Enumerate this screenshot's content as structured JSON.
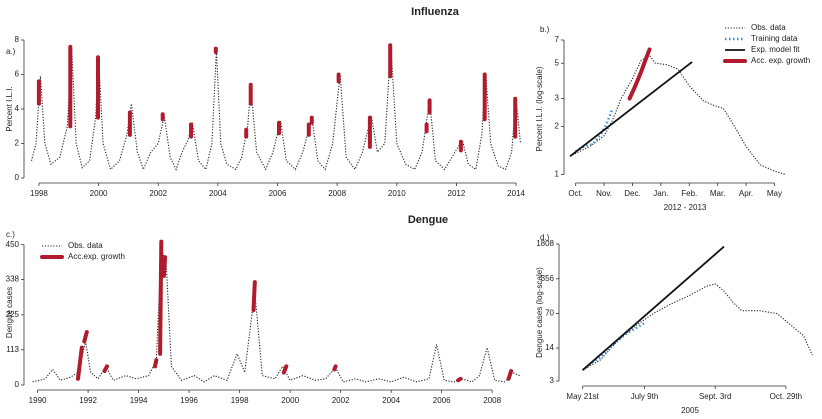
{
  "chart_data": [
    {
      "type": "line",
      "title": "Influenza",
      "panel_label": "a.)",
      "ylabel": "Percent I.L.I.",
      "xlim": [
        1997.7,
        2014.3
      ],
      "xticks": [
        1998,
        2000,
        2002,
        2004,
        2006,
        2008,
        2010,
        2012,
        2014
      ],
      "ylim": [
        0,
        8
      ],
      "yticks": [
        0,
        2,
        4,
        6,
        8
      ],
      "series": [
        {
          "color": "#222222",
          "line_style": "dotted",
          "x": [
            1997.75,
            1997.9,
            1998.05,
            1998.2,
            1998.4,
            1998.7,
            1998.95,
            1999.1,
            1999.25,
            1999.45,
            1999.7,
            1999.9,
            2000.0,
            2000.15,
            2000.4,
            2000.7,
            2000.95,
            2001.1,
            2001.3,
            2001.5,
            2001.75,
            2002.0,
            2002.2,
            2002.4,
            2002.6,
            2002.8,
            2003.0,
            2003.15,
            2003.35,
            2003.6,
            2003.8,
            2003.95,
            2004.1,
            2004.3,
            2004.6,
            2004.8,
            2005.0,
            2005.1,
            2005.3,
            2005.6,
            2005.85,
            2006.1,
            2006.3,
            2006.6,
            2006.85,
            2007.15,
            2007.35,
            2007.6,
            2007.85,
            2008.1,
            2008.3,
            2008.6,
            2008.85,
            2009.15,
            2009.35,
            2009.6,
            2009.8,
            2010.0,
            2010.3,
            2010.6,
            2010.85,
            2011.1,
            2011.3,
            2011.6,
            2011.85,
            2012.2,
            2012.4,
            2012.65,
            2012.85,
            2012.98,
            2013.15,
            2013.4,
            2013.65,
            2013.85,
            2014.0,
            2014.15
          ],
          "values": [
            1.0,
            2.0,
            5.9,
            2.0,
            0.8,
            1.2,
            3.0,
            7.5,
            2.0,
            0.6,
            1.0,
            3.5,
            7.0,
            2.0,
            0.5,
            1.0,
            2.5,
            4.3,
            1.5,
            0.5,
            1.5,
            2.0,
            3.6,
            1.2,
            0.5,
            1.5,
            2.2,
            3.2,
            1.0,
            0.5,
            2.0,
            7.4,
            2.0,
            0.8,
            0.5,
            1.2,
            3.0,
            5.3,
            1.5,
            0.5,
            1.5,
            3.3,
            1.0,
            0.5,
            1.5,
            3.5,
            1.0,
            0.5,
            2.0,
            6.0,
            1.2,
            0.5,
            1.5,
            3.6,
            1.5,
            2.0,
            7.7,
            2.0,
            0.8,
            0.5,
            1.5,
            4.5,
            1.0,
            0.5,
            1.2,
            2.2,
            0.8,
            0.5,
            2.5,
            6.1,
            2.0,
            0.7,
            0.5,
            1.5,
            4.6,
            2.0
          ]
        },
        {
          "color": "#b01c2e",
          "line_style": "thick",
          "x": [
            1998.0,
            1998.0,
            null,
            1999.05,
            1999.05,
            null,
            1999.98,
            1999.98,
            null,
            2001.05,
            2001.05,
            null,
            2002.15,
            2002.15,
            null,
            2003.1,
            2003.1,
            null,
            2003.93,
            2003.93,
            null,
            2004.95,
            2004.95,
            null,
            2005.1,
            2005.1,
            null,
            2006.05,
            2006.05,
            null,
            2007.05,
            2007.05,
            null,
            2007.15,
            2007.15,
            null,
            2008.05,
            2008.05,
            null,
            2009.1,
            2009.1,
            null,
            2009.78,
            2009.78,
            null,
            2011.0,
            2011.0,
            null,
            2011.1,
            2011.1,
            null,
            2012.15,
            2012.15,
            null,
            2012.95,
            2012.95,
            null,
            2013.97,
            2013.97
          ],
          "values": [
            4.3,
            5.6,
            null,
            3.0,
            7.6,
            null,
            3.5,
            7.0,
            null,
            2.5,
            3.8,
            null,
            3.4,
            3.7,
            null,
            2.4,
            3.1,
            null,
            7.3,
            7.5,
            null,
            2.4,
            2.8,
            null,
            4.3,
            5.4,
            null,
            2.6,
            3.2,
            null,
            2.5,
            3.1,
            null,
            3.2,
            3.5,
            null,
            5.6,
            6.0,
            null,
            1.8,
            3.5,
            null,
            5.9,
            7.7,
            null,
            2.7,
            3.1,
            null,
            3.8,
            4.5,
            null,
            1.6,
            2.1,
            null,
            3.4,
            6.0,
            null,
            2.4,
            4.6
          ]
        }
      ]
    },
    {
      "type": "line",
      "panel_label": "b.)",
      "ylabel": "Percent I.L.I. (log-scale)",
      "xlabel": "2012 - 2013",
      "log_y": true,
      "legend": "top-right",
      "xlim": [
        -0.2,
        7.9
      ],
      "xticks": [
        {
          "value": 0,
          "label": "Oct."
        },
        {
          "value": 1,
          "label": "Nov."
        },
        {
          "value": 2,
          "label": "Dec."
        },
        {
          "value": 3,
          "label": "Jan."
        },
        {
          "value": 4,
          "label": "Feb."
        },
        {
          "value": 5,
          "label": "Mar."
        },
        {
          "value": 6,
          "label": "Apr."
        },
        {
          "value": 7,
          "label": "May"
        }
      ],
      "ylim": [
        0.95,
        7
      ],
      "yticks": [
        1,
        2,
        3,
        5,
        7
      ],
      "series": [
        {
          "name": "Obs. data",
          "color": "#222222",
          "line_style": "dotted",
          "x": [
            -0.2,
            0.5,
            1.0,
            1.3,
            1.6,
            2.0,
            2.3,
            2.6,
            2.8,
            3.2,
            3.6,
            4.0,
            4.5,
            4.9,
            5.2,
            5.6,
            6.0,
            6.5,
            7.0,
            7.4
          ],
          "values": [
            1.3,
            1.5,
            1.75,
            2.2,
            3.0,
            4.0,
            5.2,
            5.6,
            5.0,
            4.9,
            4.6,
            3.6,
            2.9,
            2.7,
            2.6,
            2.0,
            1.5,
            1.15,
            1.05,
            1.0
          ]
        },
        {
          "name": "Training data",
          "color": "#3a8fd9",
          "line_style": "dotted-thick",
          "x": [
            0,
            0.3,
            0.6,
            0.9,
            1.1,
            1.3
          ],
          "values": [
            1.4,
            1.5,
            1.55,
            1.8,
            2.1,
            2.6
          ]
        },
        {
          "name": "Exp. model fit",
          "color": "#111111",
          "line_style": "solid",
          "x": [
            -0.2,
            4.1
          ],
          "values": [
            1.3,
            5.1
          ]
        },
        {
          "name": "Acc. exp. growth",
          "color": "#b01c2e",
          "line_style": "thick",
          "x": [
            1.9,
            2.1,
            2.3,
            2.5,
            2.6
          ],
          "values": [
            3.0,
            3.6,
            4.4,
            5.5,
            6.1
          ]
        }
      ]
    },
    {
      "type": "line",
      "title": "Dengue",
      "panel_label": "c.)",
      "ylabel": "Dengue cases",
      "legend": "top-left",
      "xlim": [
        1989.7,
        2009.3
      ],
      "xticks": [
        1990,
        1992,
        1994,
        1996,
        1998,
        2000,
        2002,
        2004,
        2006,
        2008
      ],
      "ylim": [
        0,
        465
      ],
      "yticks": [
        0,
        113,
        225,
        338,
        450
      ],
      "series": [
        {
          "name": "Obs. data",
          "color": "#222222",
          "line_style": "dotted",
          "x": [
            1989.8,
            1990.3,
            1990.6,
            1990.9,
            1991.3,
            1991.6,
            1991.9,
            1992.1,
            1992.4,
            1992.7,
            1993.0,
            1993.5,
            1993.9,
            1994.4,
            1994.7,
            1994.9,
            1995.1,
            1995.3,
            1995.7,
            1996.2,
            1996.6,
            1997.0,
            1997.5,
            1997.9,
            1998.2,
            1998.6,
            1998.9,
            1999.4,
            1999.7,
            2000.0,
            2000.5,
            2001.0,
            2001.4,
            2001.8,
            2002.1,
            2002.6,
            2003.0,
            2003.5,
            2004.0,
            2004.5,
            2005.0,
            2005.5,
            2005.8,
            2006.1,
            2006.5,
            2006.8,
            2007.2,
            2007.5,
            2007.8,
            2008.1,
            2008.5,
            2008.8,
            2009.1
          ],
          "values": [
            10,
            20,
            50,
            15,
            25,
            40,
            140,
            40,
            20,
            60,
            15,
            30,
            20,
            30,
            80,
            440,
            380,
            60,
            15,
            30,
            10,
            30,
            15,
            100,
            40,
            300,
            30,
            20,
            60,
            15,
            30,
            15,
            20,
            55,
            10,
            20,
            10,
            20,
            10,
            25,
            10,
            20,
            130,
            15,
            10,
            20,
            10,
            30,
            120,
            15,
            10,
            40,
            30
          ]
        },
        {
          "name": "Acc.exp. growth",
          "color": "#b01c2e",
          "line_style": "thick",
          "x": [
            1991.6,
            1991.75,
            null,
            1991.85,
            1991.95,
            null,
            1992.65,
            1992.75,
            null,
            1994.65,
            1994.7,
            null,
            1994.85,
            1994.9,
            null,
            1995.0,
            1995.05,
            null,
            1998.55,
            1998.6,
            null,
            1999.75,
            1999.85,
            null,
            2001.75,
            2001.8,
            null,
            2006.65,
            2006.75,
            null,
            2008.65,
            2008.75
          ],
          "values": [
            20,
            120,
            null,
            140,
            170,
            null,
            45,
            60,
            null,
            60,
            80,
            null,
            100,
            460,
            null,
            350,
            410,
            null,
            240,
            330,
            null,
            40,
            60,
            null,
            50,
            60,
            null,
            15,
            20,
            null,
            20,
            45
          ]
        }
      ]
    },
    {
      "type": "line",
      "panel_label": "d.)",
      "ylabel": "Dengue cases (log-scale)",
      "xlabel": "2005",
      "log_y": true,
      "xlim": [
        -2,
        26.3
      ],
      "xticks": [
        {
          "value": 0,
          "label": "May 21st"
        },
        {
          "value": 7,
          "label": "July 9th"
        },
        {
          "value": 15,
          "label": "Sept. 3rd"
        },
        {
          "value": 23,
          "label": "Oct. 29th"
        }
      ],
      "ylim": [
        3,
        1808
      ],
      "yticks": [
        3,
        14,
        70,
        356,
        1808
      ],
      "series": [
        {
          "color": "#222222",
          "line_style": "dotted",
          "x": [
            0,
            2,
            4,
            6,
            8,
            10,
            12,
            14,
            15,
            16,
            17,
            18,
            20,
            22,
            23,
            24,
            25,
            26
          ],
          "values": [
            5,
            8,
            20,
            40,
            70,
            110,
            160,
            250,
            280,
            200,
            120,
            80,
            80,
            70,
            50,
            35,
            25,
            10
          ]
        },
        {
          "color": "#3a8fd9",
          "line_style": "dotted-thick",
          "x": [
            0,
            1,
            2,
            3,
            4,
            5,
            6,
            7
          ],
          "values": [
            5,
            7,
            9,
            14,
            20,
            28,
            35,
            45
          ]
        },
        {
          "color": "#111111",
          "line_style": "solid",
          "x": [
            0,
            16
          ],
          "values": [
            5,
            1600
          ]
        }
      ]
    }
  ]
}
